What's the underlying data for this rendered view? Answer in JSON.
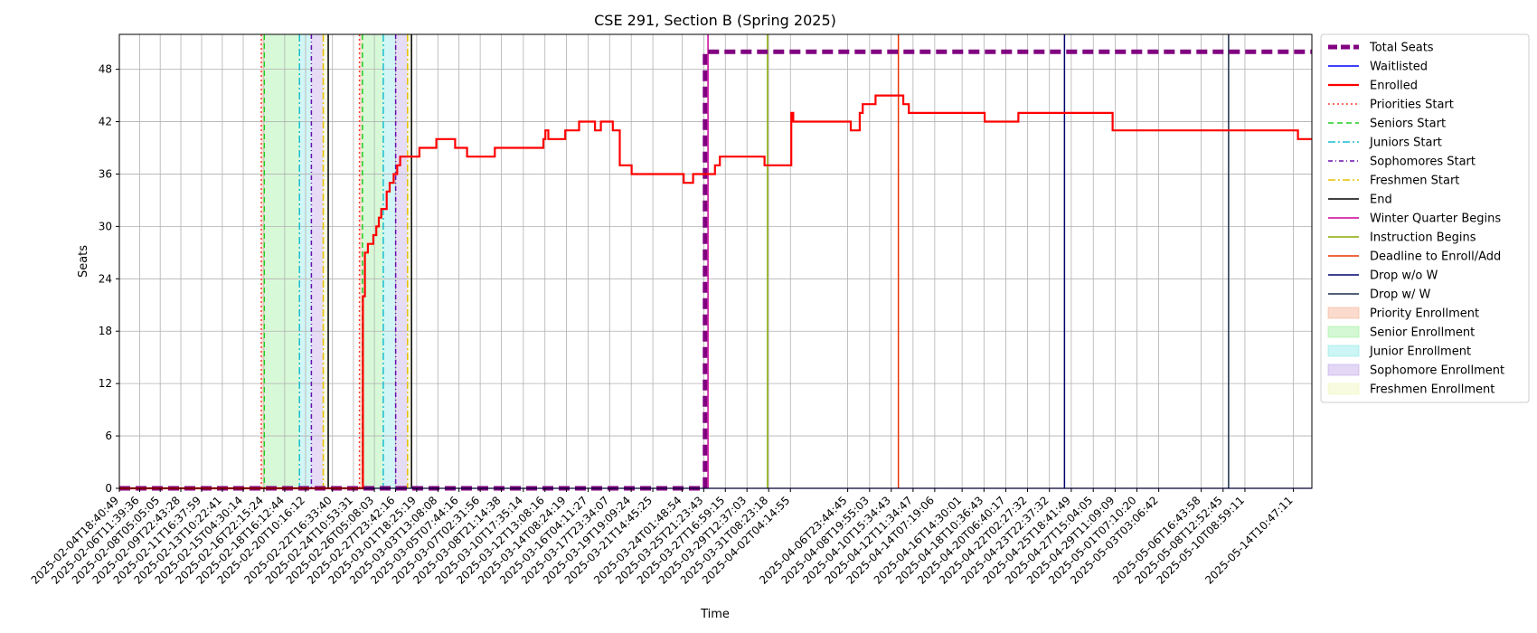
{
  "chart_data": {
    "type": "line",
    "title": "CSE 291, Section B (Spring 2025)",
    "xlabel": "Time",
    "ylabel": "Seats",
    "xlim": [
      "2025-02-04T18:40:49",
      "2025-05-16T00:00:00"
    ],
    "ylim": [
      0,
      52
    ],
    "yticks": [
      0,
      6,
      12,
      18,
      24,
      30,
      36,
      42,
      48
    ],
    "xticks": [
      "2025-02-04T18:40:49",
      "2025-02-06T11:39:36",
      "2025-02-08T05:05:05",
      "2025-02-09T22:43:28",
      "2025-02-11T16:37:59",
      "2025-02-13T10:22:41",
      "2025-02-15T04:30:14",
      "2025-02-16T22:15:24",
      "2025-02-18T16:12:44",
      "2025-02-20T10:16:12",
      "2025-02-22T16:33:40",
      "2025-02-24T10:53:31",
      "2025-02-26T05:08:03",
      "2025-02-27T23:42:16",
      "2025-03-01T18:25:19",
      "2025-03-03T13:08:08",
      "2025-03-05T07:44:16",
      "2025-03-07T02:31:56",
      "2025-03-08T21:14:38",
      "2025-03-10T17:35:14",
      "2025-03-12T13:08:16",
      "2025-03-14T08:24:19",
      "2025-03-16T04:11:27",
      "2025-03-17T23:34:07",
      "2025-03-19T19:09:24",
      "2025-03-21T14:45:25",
      "2025-03-24T01:48:54",
      "2025-03-25T21:23:43",
      "2025-03-27T16:59:15",
      "2025-03-29T12:37:03",
      "2025-03-31T08:23:18",
      "2025-04-02T04:14:55",
      "2025-04-06T23:44:45",
      "2025-04-08T19:55:03",
      "2025-04-10T15:34:43",
      "2025-04-12T11:34:47",
      "2025-04-14T07:19:06",
      "2025-04-16T14:30:01",
      "2025-04-18T10:36:43",
      "2025-04-20T06:40:17",
      "2025-04-22T02:27:32",
      "2025-04-23T22:37:32",
      "2025-04-25T18:41:49",
      "2025-04-27T15:04:05",
      "2025-04-29T11:09:09",
      "2025-05-01T07:10:20",
      "2025-05-03T03:06:42",
      "2025-05-06T16:43:58",
      "2025-05-08T12:52:45",
      "2025-05-10T08:59:11",
      "2025-05-14T10:47:11"
    ],
    "grid": true,
    "legend_position": "outside-right",
    "series": [
      {
        "name": "Total Seats",
        "color": "#800080",
        "style": "dashed-thick",
        "points": [
          [
            "2025-02-04T18:40:49",
            0
          ],
          [
            "2025-03-26T00:00:00",
            0
          ],
          [
            "2025-03-26T00:00:00",
            50
          ],
          [
            "2025-05-15T23:00:00",
            50
          ]
        ]
      },
      {
        "name": "Waitlisted",
        "color": "#0000ff",
        "style": "solid",
        "points": [
          [
            "2025-02-04T18:40:49",
            0
          ],
          [
            "2025-05-15T23:00:00",
            0
          ]
        ]
      },
      {
        "name": "Enrolled",
        "color": "#ff0000",
        "style": "solid-thick",
        "points": [
          [
            "2025-02-04T18:40:49",
            0
          ],
          [
            "2025-02-25T06:00:00",
            0
          ],
          [
            "2025-02-25T06:00:00",
            22
          ],
          [
            "2025-02-25T10:00:00",
            22
          ],
          [
            "2025-02-25T10:00:00",
            27
          ],
          [
            "2025-02-25T16:00:00",
            27
          ],
          [
            "2025-02-25T16:00:00",
            28
          ],
          [
            "2025-02-26T03:00:00",
            28
          ],
          [
            "2025-02-26T03:00:00",
            29
          ],
          [
            "2025-02-26T09:00:00",
            29
          ],
          [
            "2025-02-26T09:00:00",
            30
          ],
          [
            "2025-02-26T14:00:00",
            30
          ],
          [
            "2025-02-26T14:00:00",
            31
          ],
          [
            "2025-02-26T19:00:00",
            31
          ],
          [
            "2025-02-26T19:00:00",
            32
          ],
          [
            "2025-02-27T06:00:00",
            32
          ],
          [
            "2025-02-27T06:00:00",
            34
          ],
          [
            "2025-02-27T12:00:00",
            34
          ],
          [
            "2025-02-27T12:00:00",
            35
          ],
          [
            "2025-02-27T20:00:00",
            35
          ],
          [
            "2025-02-27T20:00:00",
            36
          ],
          [
            "2025-02-28T03:00:00",
            36
          ],
          [
            "2025-02-28T03:00:00",
            37
          ],
          [
            "2025-02-28T09:00:00",
            37
          ],
          [
            "2025-02-28T09:00:00",
            38
          ],
          [
            "2025-03-02T00:00:00",
            38
          ],
          [
            "2025-03-02T00:00:00",
            39
          ],
          [
            "2025-03-03T10:00:00",
            39
          ],
          [
            "2025-03-03T10:00:00",
            40
          ],
          [
            "2025-03-05T00:00:00",
            40
          ],
          [
            "2025-03-05T00:00:00",
            39
          ],
          [
            "2025-03-06T00:00:00",
            39
          ],
          [
            "2025-03-06T00:00:00",
            38
          ],
          [
            "2025-03-08T08:00:00",
            38
          ],
          [
            "2025-03-08T08:00:00",
            39
          ],
          [
            "2025-03-12T10:00:00",
            39
          ],
          [
            "2025-03-12T10:00:00",
            40
          ],
          [
            "2025-03-12T14:00:00",
            40
          ],
          [
            "2025-03-12T14:00:00",
            41
          ],
          [
            "2025-03-12T20:00:00",
            41
          ],
          [
            "2025-03-12T20:00:00",
            40
          ],
          [
            "2025-03-14T06:00:00",
            40
          ],
          [
            "2025-03-14T06:00:00",
            41
          ],
          [
            "2025-03-15T10:00:00",
            41
          ],
          [
            "2025-03-15T10:00:00",
            42
          ],
          [
            "2025-03-16T18:00:00",
            42
          ],
          [
            "2025-03-16T18:00:00",
            41
          ],
          [
            "2025-03-17T06:00:00",
            41
          ],
          [
            "2025-03-17T06:00:00",
            42
          ],
          [
            "2025-03-18T06:00:00",
            42
          ],
          [
            "2025-03-18T06:00:00",
            41
          ],
          [
            "2025-03-18T20:00:00",
            41
          ],
          [
            "2025-03-18T20:00:00",
            37
          ],
          [
            "2025-03-19T20:00:00",
            37
          ],
          [
            "2025-03-19T20:00:00",
            36
          ],
          [
            "2025-03-24T05:00:00",
            36
          ],
          [
            "2025-03-24T05:00:00",
            35
          ],
          [
            "2025-03-25T00:00:00",
            35
          ],
          [
            "2025-03-25T00:00:00",
            36
          ],
          [
            "2025-03-26T20:00:00",
            36
          ],
          [
            "2025-03-26T20:00:00",
            37
          ],
          [
            "2025-03-27T06:00:00",
            37
          ],
          [
            "2025-03-27T06:00:00",
            38
          ],
          [
            "2025-03-31T00:00:00",
            38
          ],
          [
            "2025-03-31T00:00:00",
            37
          ],
          [
            "2025-04-02T06:00:00",
            37
          ],
          [
            "2025-04-02T06:00:00",
            43
          ],
          [
            "2025-04-02T10:00:00",
            43
          ],
          [
            "2025-04-02T10:00:00",
            42
          ],
          [
            "2025-04-07T06:00:00",
            42
          ],
          [
            "2025-04-07T06:00:00",
            41
          ],
          [
            "2025-04-08T00:00:00",
            41
          ],
          [
            "2025-04-08T00:00:00",
            43
          ],
          [
            "2025-04-08T06:00:00",
            43
          ],
          [
            "2025-04-08T06:00:00",
            44
          ],
          [
            "2025-04-09T08:00:00",
            44
          ],
          [
            "2025-04-09T08:00:00",
            45
          ],
          [
            "2025-04-11T16:00:00",
            45
          ],
          [
            "2025-04-11T16:00:00",
            44
          ],
          [
            "2025-04-12T03:00:00",
            44
          ],
          [
            "2025-04-12T03:00:00",
            43
          ],
          [
            "2025-04-18T12:00:00",
            43
          ],
          [
            "2025-04-18T12:00:00",
            42
          ],
          [
            "2025-04-21T08:00:00",
            42
          ],
          [
            "2025-04-21T08:00:00",
            43
          ],
          [
            "2025-04-29T06:00:00",
            43
          ],
          [
            "2025-04-29T06:00:00",
            41
          ],
          [
            "2025-05-14T20:00:00",
            41
          ],
          [
            "2025-05-14T20:00:00",
            40
          ],
          [
            "2025-05-15T23:00:00",
            40
          ]
        ]
      }
    ],
    "markers": [
      {
        "name": "Priorities Start",
        "color": "#ff3b2f",
        "style": "dotted",
        "x": [
          "2025-02-16T17:00:00",
          "2025-02-24T23:00:00"
        ]
      },
      {
        "name": "Seniors Start",
        "color": "#22cc22",
        "style": "dashed",
        "x": [
          "2025-02-16T23:00:00",
          "2025-02-25T05:00:00"
        ]
      },
      {
        "name": "Juniors Start",
        "color": "#17becf",
        "style": "dashdot",
        "x": [
          "2025-02-19T22:00:00",
          "2025-02-26T23:00:00"
        ]
      },
      {
        "name": "Sophomores Start",
        "color": "#6a0dad",
        "style": "dashdot-dense",
        "x": [
          "2025-02-20T22:00:00",
          "2025-02-28T00:00:00"
        ]
      },
      {
        "name": "Freshmen Start",
        "color": "#e6c000",
        "style": "dashdot",
        "x": [
          "2025-02-21T22:00:00",
          "2025-02-29T00:00:00"
        ]
      },
      {
        "name": "End",
        "color": "#000000",
        "style": "solid",
        "x": [
          "2025-02-22T08:00:00",
          "2025-03-01T08:00:00"
        ]
      },
      {
        "name": "Winter Quarter Begins",
        "color": "#cc0099",
        "style": "solid",
        "x": [
          "2025-03-26T06:00:00"
        ]
      },
      {
        "name": "Instruction Begins",
        "color": "#88aa00",
        "style": "solid",
        "x": [
          "2025-03-31T06:00:00"
        ]
      },
      {
        "name": "Deadline to Enroll/Add",
        "color": "#ee3300",
        "style": "solid",
        "x": [
          "2025-04-11T06:00:00"
        ]
      },
      {
        "name": "Drop w/o W",
        "color": "#00006e",
        "style": "solid",
        "x": [
          "2025-04-25T05:00:00"
        ]
      },
      {
        "name": "Drop w/ W",
        "color": "#1c2e4a",
        "style": "solid",
        "x": [
          "2025-05-09T00:00:00"
        ]
      }
    ],
    "spans": [
      {
        "name": "Priority Enrollment",
        "color": "#f4a582",
        "ranges": [
          [
            "2025-02-16T17:00:00",
            "2025-02-16T23:00:00"
          ],
          [
            "2025-02-24T23:00:00",
            "2025-02-25T05:00:00"
          ]
        ]
      },
      {
        "name": "Senior Enrollment",
        "color": "#90ee90",
        "ranges": [
          [
            "2025-02-16T23:00:00",
            "2025-02-19T22:00:00"
          ],
          [
            "2025-02-25T05:00:00",
            "2025-02-26T23:00:00"
          ]
        ]
      },
      {
        "name": "Junior Enrollment",
        "color": "#7fe5e5",
        "ranges": [
          [
            "2025-02-19T22:00:00",
            "2025-02-20T22:00:00"
          ],
          [
            "2025-02-26T23:00:00",
            "2025-02-28T00:00:00"
          ]
        ]
      },
      {
        "name": "Sophomore Enrollment",
        "color": "#b79ce6",
        "ranges": [
          [
            "2025-02-20T22:00:00",
            "2025-02-21T22:00:00"
          ],
          [
            "2025-02-28T00:00:00",
            "2025-02-29T00:00:00"
          ]
        ]
      },
      {
        "name": "Freshmen Enrollment",
        "color": "#eef5b0",
        "ranges": [
          [
            "2025-02-21T22:00:00",
            "2025-02-22T08:00:00"
          ],
          [
            "2025-02-29T00:00:00",
            "2025-03-01T08:00:00"
          ]
        ]
      }
    ],
    "legend_order": [
      "Total Seats",
      "Waitlisted",
      "Enrolled",
      "Priorities Start",
      "Seniors Start",
      "Juniors Start",
      "Sophomores Start",
      "Freshmen Start",
      "End",
      "Winter Quarter Begins",
      "Instruction Begins",
      "Deadline to Enroll/Add",
      "Drop w/o W",
      "Drop w/ W",
      "Priority Enrollment",
      "Senior Enrollment",
      "Junior Enrollment",
      "Sophomore Enrollment",
      "Freshmen Enrollment"
    ]
  }
}
